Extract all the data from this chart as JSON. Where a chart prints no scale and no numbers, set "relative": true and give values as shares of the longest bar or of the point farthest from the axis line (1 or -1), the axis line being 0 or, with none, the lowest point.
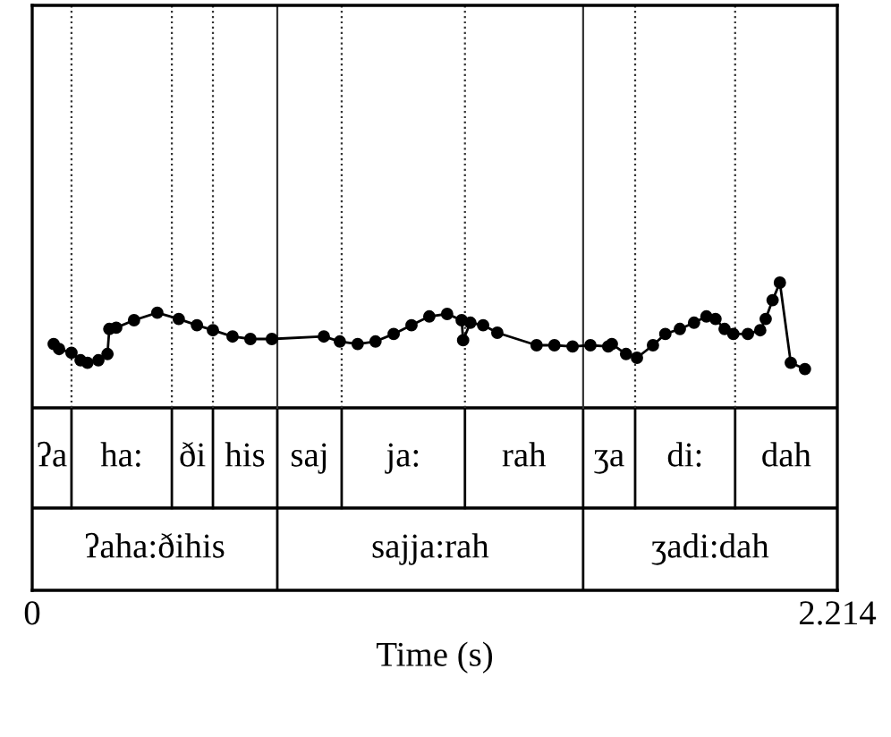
{
  "chart_data": {
    "type": "line",
    "relative": true,
    "xlim": [
      0,
      2.214
    ],
    "xticks": [
      0,
      2.214
    ],
    "xlabel": "Time (s)",
    "marker": "circle",
    "line_style": "solid",
    "x": [
      0.059,
      0.074,
      0.108,
      0.133,
      0.152,
      0.182,
      0.207,
      0.212,
      0.231,
      0.28,
      0.344,
      0.403,
      0.453,
      0.497,
      0.551,
      0.6,
      0.659,
      0.802,
      0.846,
      0.895,
      0.944,
      0.994,
      1.043,
      1.092,
      1.141,
      1.181,
      1.185,
      1.205,
      1.24,
      1.279,
      1.387,
      1.436,
      1.486,
      1.535,
      1.584,
      1.594,
      1.633,
      1.663,
      1.707,
      1.741,
      1.781,
      1.82,
      1.854,
      1.879,
      1.904,
      1.928,
      1.968,
      2.002,
      2.017,
      2.036,
      2.056,
      2.086,
      2.125
    ],
    "series": [
      {
        "color": "#000000",
        "values": [
          0.51,
          0.47,
          0.44,
          0.38,
          0.36,
          0.38,
          0.43,
          0.63,
          0.64,
          0.7,
          0.76,
          0.71,
          0.66,
          0.62,
          0.57,
          0.55,
          0.55,
          0.57,
          0.53,
          0.51,
          0.53,
          0.59,
          0.66,
          0.73,
          0.75,
          0.7,
          0.54,
          0.68,
          0.66,
          0.6,
          0.5,
          0.5,
          0.49,
          0.5,
          0.49,
          0.51,
          0.43,
          0.4,
          0.5,
          0.59,
          0.63,
          0.68,
          0.73,
          0.71,
          0.63,
          0.59,
          0.59,
          0.62,
          0.71,
          0.86,
          1.0,
          0.36,
          0.31
        ]
      }
    ],
    "ref_lines": [
      {
        "axis": "x",
        "value": 0.108,
        "line_style": "dotted"
      },
      {
        "axis": "x",
        "value": 0.384,
        "line_style": "dotted"
      },
      {
        "axis": "x",
        "value": 0.497,
        "line_style": "dotted"
      },
      {
        "axis": "x",
        "value": 0.851,
        "line_style": "dotted"
      },
      {
        "axis": "x",
        "value": 1.19,
        "line_style": "dotted"
      },
      {
        "axis": "x",
        "value": 1.658,
        "line_style": "dotted"
      },
      {
        "axis": "x",
        "value": 1.933,
        "line_style": "dotted"
      },
      {
        "axis": "x",
        "value": 0.674,
        "line_style": "solid"
      },
      {
        "axis": "x",
        "value": 1.515,
        "line_style": "solid"
      }
    ],
    "annotations": [
      "ʔa",
      "ha:",
      "ði",
      "his",
      "saj",
      "ja:",
      "rah",
      "ʒa",
      "di:",
      "dah",
      "ʔaha:ðihis",
      "sajja:rah",
      "ʒadi:dah"
    ]
  }
}
